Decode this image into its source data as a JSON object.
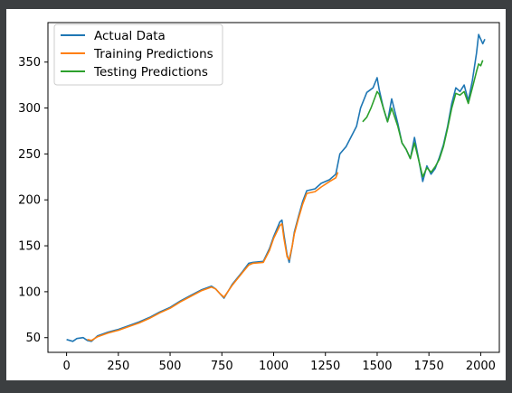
{
  "chart_data": {
    "type": "line",
    "title": "",
    "xlabel": "",
    "ylabel": "",
    "xlim": [
      -90,
      2090
    ],
    "ylim": [
      34,
      393
    ],
    "xticks": [
      0,
      250,
      500,
      750,
      1000,
      1250,
      1500,
      1750,
      2000
    ],
    "yticks": [
      50,
      100,
      150,
      200,
      250,
      300,
      350
    ],
    "legend_position": "top-left",
    "grid": false,
    "series": [
      {
        "name": "Actual Data",
        "color": "#1f77b4",
        "points": [
          [
            0,
            48
          ],
          [
            30,
            46
          ],
          [
            50,
            49
          ],
          [
            80,
            50
          ],
          [
            100,
            47
          ],
          [
            120,
            46
          ],
          [
            150,
            52
          ],
          [
            200,
            56
          ],
          [
            250,
            59
          ],
          [
            300,
            63
          ],
          [
            350,
            67
          ],
          [
            400,
            72
          ],
          [
            450,
            78
          ],
          [
            500,
            83
          ],
          [
            550,
            90
          ],
          [
            600,
            96
          ],
          [
            650,
            102
          ],
          [
            700,
            106
          ],
          [
            720,
            103
          ],
          [
            740,
            98
          ],
          [
            760,
            93
          ],
          [
            800,
            108
          ],
          [
            850,
            122
          ],
          [
            880,
            131
          ],
          [
            900,
            132
          ],
          [
            950,
            133
          ],
          [
            980,
            147
          ],
          [
            1000,
            160
          ],
          [
            1030,
            176
          ],
          [
            1040,
            178
          ],
          [
            1050,
            162
          ],
          [
            1065,
            140
          ],
          [
            1075,
            132
          ],
          [
            1090,
            150
          ],
          [
            1100,
            165
          ],
          [
            1120,
            182
          ],
          [
            1140,
            198
          ],
          [
            1160,
            210
          ],
          [
            1200,
            212
          ],
          [
            1230,
            218
          ],
          [
            1270,
            222
          ],
          [
            1300,
            228
          ],
          [
            1320,
            250
          ],
          [
            1350,
            258
          ],
          [
            1400,
            280
          ],
          [
            1420,
            300
          ],
          [
            1450,
            317
          ],
          [
            1480,
            322
          ],
          [
            1500,
            333
          ],
          [
            1510,
            320
          ],
          [
            1530,
            300
          ],
          [
            1550,
            285
          ],
          [
            1570,
            310
          ],
          [
            1600,
            283
          ],
          [
            1620,
            262
          ],
          [
            1640,
            255
          ],
          [
            1660,
            245
          ],
          [
            1680,
            268
          ],
          [
            1700,
            245
          ],
          [
            1720,
            220
          ],
          [
            1740,
            237
          ],
          [
            1760,
            228
          ],
          [
            1780,
            234
          ],
          [
            1800,
            246
          ],
          [
            1820,
            260
          ],
          [
            1840,
            280
          ],
          [
            1860,
            305
          ],
          [
            1880,
            322
          ],
          [
            1900,
            318
          ],
          [
            1920,
            325
          ],
          [
            1940,
            308
          ],
          [
            1960,
            330
          ],
          [
            1980,
            360
          ],
          [
            1990,
            380
          ],
          [
            2000,
            375
          ],
          [
            2010,
            370
          ],
          [
            2020,
            375
          ]
        ]
      },
      {
        "name": "Training Predictions",
        "color": "#ff7f0e",
        "points": [
          [
            100,
            48
          ],
          [
            120,
            47
          ],
          [
            150,
            51
          ],
          [
            200,
            55
          ],
          [
            250,
            58
          ],
          [
            300,
            62
          ],
          [
            350,
            66
          ],
          [
            400,
            71
          ],
          [
            450,
            77
          ],
          [
            500,
            82
          ],
          [
            550,
            89
          ],
          [
            600,
            95
          ],
          [
            650,
            101
          ],
          [
            700,
            105
          ],
          [
            720,
            103
          ],
          [
            740,
            98
          ],
          [
            760,
            94
          ],
          [
            800,
            107
          ],
          [
            850,
            121
          ],
          [
            880,
            129
          ],
          [
            900,
            131
          ],
          [
            950,
            132
          ],
          [
            980,
            145
          ],
          [
            1000,
            158
          ],
          [
            1030,
            172
          ],
          [
            1040,
            174
          ],
          [
            1050,
            158
          ],
          [
            1065,
            138
          ],
          [
            1075,
            135
          ],
          [
            1090,
            150
          ],
          [
            1100,
            163
          ],
          [
            1120,
            180
          ],
          [
            1140,
            195
          ],
          [
            1160,
            207
          ],
          [
            1200,
            209
          ],
          [
            1230,
            214
          ],
          [
            1270,
            220
          ],
          [
            1300,
            224
          ],
          [
            1310,
            230
          ]
        ]
      },
      {
        "name": "Testing Predictions",
        "color": "#2ca02c",
        "points": [
          [
            1430,
            285
          ],
          [
            1450,
            290
          ],
          [
            1470,
            300
          ],
          [
            1490,
            312
          ],
          [
            1500,
            318
          ],
          [
            1510,
            315
          ],
          [
            1530,
            300
          ],
          [
            1550,
            285
          ],
          [
            1570,
            300
          ],
          [
            1600,
            280
          ],
          [
            1620,
            262
          ],
          [
            1640,
            255
          ],
          [
            1660,
            245
          ],
          [
            1680,
            262
          ],
          [
            1700,
            244
          ],
          [
            1720,
            225
          ],
          [
            1740,
            235
          ],
          [
            1760,
            230
          ],
          [
            1780,
            236
          ],
          [
            1800,
            244
          ],
          [
            1820,
            258
          ],
          [
            1840,
            278
          ],
          [
            1860,
            300
          ],
          [
            1880,
            316
          ],
          [
            1900,
            314
          ],
          [
            1920,
            318
          ],
          [
            1940,
            305
          ],
          [
            1960,
            322
          ],
          [
            1980,
            340
          ],
          [
            1990,
            348
          ],
          [
            2000,
            346
          ],
          [
            2010,
            352
          ]
        ]
      }
    ]
  }
}
